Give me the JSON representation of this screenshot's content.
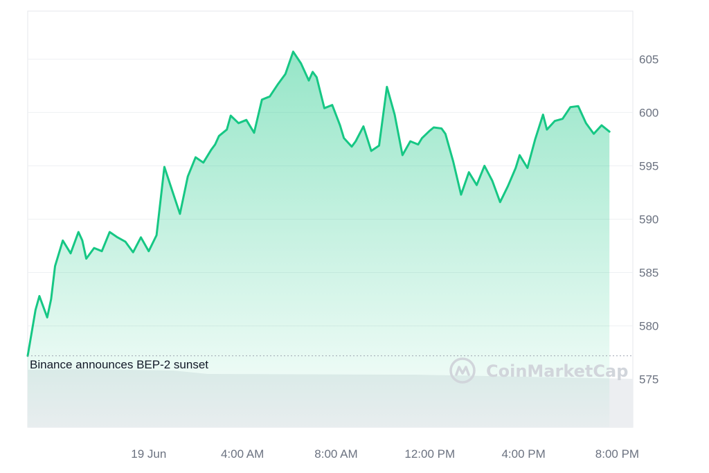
{
  "chart_data": {
    "type": "area",
    "title": "",
    "xlabel": "",
    "ylabel": "",
    "ylim": [
      570.5,
      609.5
    ],
    "xlim": [
      "2024-06-18 18:50",
      "2024-06-19 20:40"
    ],
    "y_axis_side": "right",
    "grid": "horizontal",
    "line_color": "#16c784",
    "y_ticks": [
      575,
      580,
      585,
      590,
      595,
      600,
      605
    ],
    "y_tick_labels": [
      "575",
      "580",
      "585",
      "590",
      "595",
      "600",
      "605"
    ],
    "x_ticks": [
      "2024-06-19 00:00",
      "2024-06-19 04:00",
      "2024-06-19 08:00",
      "2024-06-19 12:00",
      "2024-06-19 16:00",
      "2024-06-19 20:00"
    ],
    "x_tick_labels": [
      "19 Jun",
      "4:00 AM",
      "8:00 AM",
      "12:00 PM",
      "4:00 PM",
      "8:00 PM"
    ],
    "series": [
      {
        "x": [
          "2024-06-18 18:50",
          "2024-06-18 19:10",
          "2024-06-18 19:20",
          "2024-06-18 19:40",
          "2024-06-18 19:50",
          "2024-06-18 20:00",
          "2024-06-18 20:20",
          "2024-06-18 20:40",
          "2024-06-18 21:00",
          "2024-06-18 21:10",
          "2024-06-18 21:20",
          "2024-06-18 21:40",
          "2024-06-18 22:00",
          "2024-06-18 22:20",
          "2024-06-18 22:40",
          "2024-06-18 23:00",
          "2024-06-18 23:20",
          "2024-06-18 23:40",
          "2024-06-19 00:00",
          "2024-06-19 00:20",
          "2024-06-19 00:40",
          "2024-06-19 01:00",
          "2024-06-19 01:20",
          "2024-06-19 01:40",
          "2024-06-19 02:00",
          "2024-06-19 02:20",
          "2024-06-19 02:40",
          "2024-06-19 02:50",
          "2024-06-19 03:00",
          "2024-06-19 03:20",
          "2024-06-19 03:30",
          "2024-06-19 03:50",
          "2024-06-19 04:10",
          "2024-06-19 04:30",
          "2024-06-19 04:50",
          "2024-06-19 05:10",
          "2024-06-19 05:30",
          "2024-06-19 05:50",
          "2024-06-19 06:10",
          "2024-06-19 06:30",
          "2024-06-19 06:50",
          "2024-06-19 07:00",
          "2024-06-19 07:10",
          "2024-06-19 07:30",
          "2024-06-19 07:50",
          "2024-06-19 08:10",
          "2024-06-19 08:20",
          "2024-06-19 08:40",
          "2024-06-19 08:50",
          "2024-06-19 09:10",
          "2024-06-19 09:30",
          "2024-06-19 09:50",
          "2024-06-19 10:10",
          "2024-06-19 10:30",
          "2024-06-19 10:50",
          "2024-06-19 11:10",
          "2024-06-19 11:30",
          "2024-06-19 11:40",
          "2024-06-19 12:00",
          "2024-06-19 12:10",
          "2024-06-19 12:30",
          "2024-06-19 12:40",
          "2024-06-19 13:00",
          "2024-06-19 13:20",
          "2024-06-19 13:40",
          "2024-06-19 14:00",
          "2024-06-19 14:20",
          "2024-06-19 14:40",
          "2024-06-19 15:00",
          "2024-06-19 15:20",
          "2024-06-19 15:40",
          "2024-06-19 15:50",
          "2024-06-19 16:10",
          "2024-06-19 16:30",
          "2024-06-19 16:50",
          "2024-06-19 17:00",
          "2024-06-19 17:20",
          "2024-06-19 17:40",
          "2024-06-19 18:00",
          "2024-06-19 18:20",
          "2024-06-19 18:40",
          "2024-06-19 19:00",
          "2024-06-19 19:20",
          "2024-06-19 19:40",
          "2024-06-19 20:00",
          "2024-06-19 20:20",
          "2024-06-19 20:30",
          "2024-06-19 20:40"
        ],
        "y": [
          577.2,
          581.5,
          582.8,
          580.8,
          582.5,
          585.6,
          588.0,
          586.8,
          588.8,
          588.0,
          586.3,
          587.3,
          587.0,
          588.8,
          588.3,
          587.9,
          586.9,
          588.3,
          587.0,
          588.5,
          594.9,
          592.7,
          590.5,
          594.0,
          595.8,
          595.3,
          596.5,
          597.0,
          597.8,
          598.4,
          599.7,
          599.0,
          599.3,
          598.1,
          601.2,
          601.5,
          602.6,
          603.6,
          605.7,
          604.6,
          603.0,
          603.8,
          603.3,
          600.4,
          600.7,
          598.8,
          597.6,
          596.8,
          597.3,
          598.7,
          596.4,
          596.9,
          602.4,
          599.8,
          596.0,
          597.3,
          597.0,
          597.6,
          598.3,
          598.6,
          598.5,
          598.0,
          595.4,
          592.3,
          594.4,
          593.2,
          595.0,
          593.6,
          591.6,
          593.1,
          594.8,
          596.0,
          594.8,
          597.5,
          599.8,
          598.4,
          599.2,
          599.4,
          600.5,
          600.6,
          599.0,
          598.0,
          598.8,
          598.2,
          null,
          null,
          null,
          null
        ]
      }
    ],
    "annotation": {
      "x": "2024-06-18 18:50",
      "y": 577.2,
      "text": "Binance announces BEP-2 sunset"
    },
    "volume_panel": true,
    "watermark": "CoinMarketCap"
  }
}
